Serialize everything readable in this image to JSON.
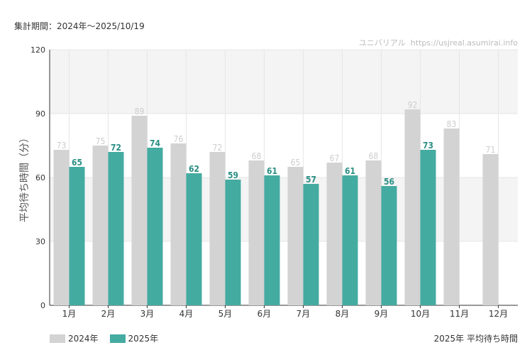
{
  "header": {
    "period_label": "集計期間：2024年～2025/10/19"
  },
  "credit": {
    "site_name": "ユニバリアル",
    "url": "https://usjreal.asumirai.info"
  },
  "colors": {
    "series_2024": "#d3d3d3",
    "series_2025": "#44aba1",
    "label_2024": "#cccccc",
    "label_2025": "#2a8f85",
    "band": "#f4f4f4",
    "grid": "#e6e6e6",
    "axis": "#333333"
  },
  "chart_data": {
    "type": "bar",
    "title": "2025年 平均待ち時間",
    "ylabel": "平均待ち時間（分）",
    "xlabel": "",
    "ylim": [
      0,
      120
    ],
    "yticks": [
      0,
      30,
      60,
      90,
      120
    ],
    "categories": [
      "1月",
      "2月",
      "3月",
      "4月",
      "5月",
      "6月",
      "7月",
      "8月",
      "9月",
      "10月",
      "11月",
      "12月"
    ],
    "series": [
      {
        "name": "2024年",
        "values": [
          73,
          75,
          89,
          76,
          72,
          68,
          65,
          67,
          68,
          92,
          83,
          71
        ]
      },
      {
        "name": "2025年",
        "values": [
          65,
          72,
          74,
          62,
          59,
          61,
          57,
          61,
          56,
          73,
          null,
          null
        ]
      }
    ],
    "legend": "bottom-left",
    "grid": true
  }
}
